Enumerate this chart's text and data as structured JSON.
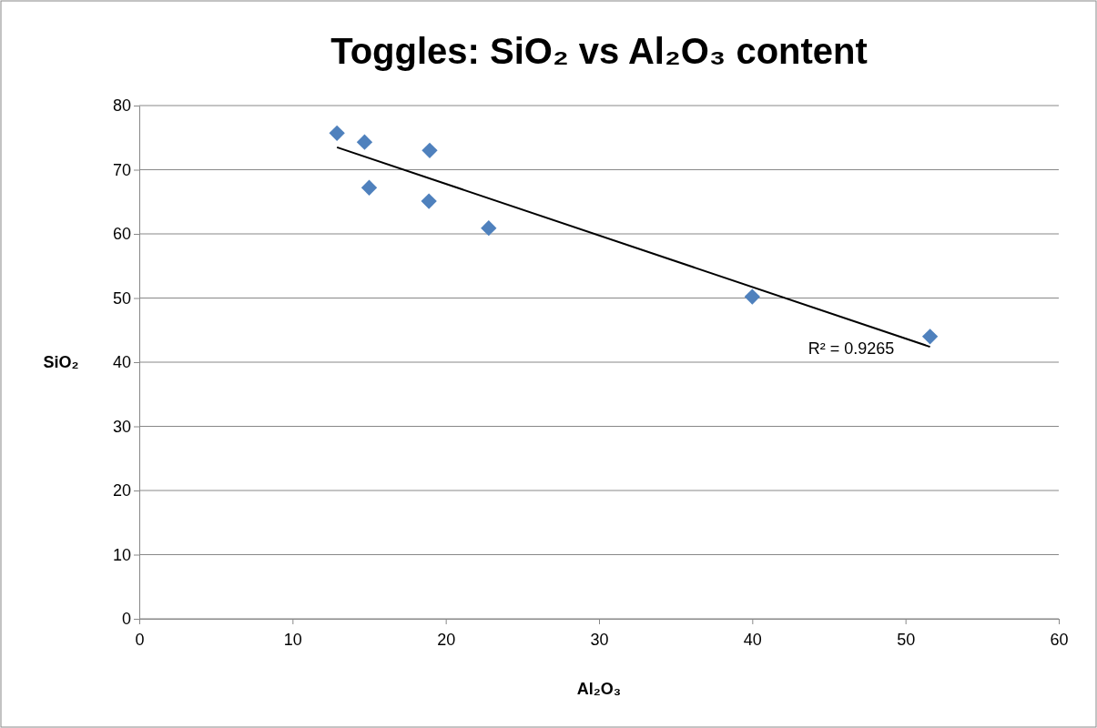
{
  "chart_data": {
    "type": "scatter",
    "title": "Toggles: SiO₂ vs Al₂O₃ content",
    "xlabel": "Al₂O₃",
    "ylabel": "SiO₂",
    "xlim": [
      0,
      60
    ],
    "xticks": [
      0,
      10,
      20,
      30,
      40,
      50,
      60
    ],
    "ylim": [
      0,
      80
    ],
    "yticks": [
      0,
      10,
      20,
      30,
      40,
      50,
      60,
      70,
      80
    ],
    "grid": "y",
    "marker": "diamond",
    "series": [
      {
        "color": "#4f81bd",
        "x": [
          12.9,
          14.7,
          18.95,
          15.0,
          18.9,
          22.8,
          40.0,
          51.6
        ],
        "values": [
          75.7,
          74.3,
          73.0,
          67.2,
          65.1,
          60.9,
          50.2,
          44.0
        ]
      },
      {
        "type": "line",
        "color": "#000000",
        "marker": "none",
        "x": [
          12.9,
          51.6
        ],
        "values": [
          73.5,
          42.4
        ]
      }
    ],
    "annotations": [
      "R² = 0.9265"
    ]
  }
}
